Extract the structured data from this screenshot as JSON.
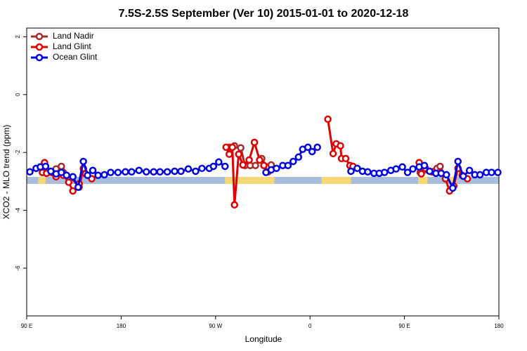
{
  "chart_data": {
    "type": "line",
    "title": "7.5S-2.5S September (Ver 10)   2015-01-01 to 2020-12-18",
    "x_label": "Longitude",
    "y_label": "XCO2 - MLO trend (ppm)",
    "xlim": [
      90,
      540
    ],
    "ylim": [
      -7.65,
      2.3
    ],
    "xticks": [
      {
        "value": 90,
        "label": "90 E"
      },
      180,
      {
        "value": 270,
        "label": "90 W"
      },
      {
        "value": 360,
        "label": "0"
      },
      {
        "value": 450,
        "label": "90 E"
      },
      {
        "value": 540,
        "label": "180"
      }
    ],
    "yticks": [
      2,
      0,
      -2,
      -4,
      -6
    ],
    "legend": "top-left",
    "land_ranges": [
      [
        101,
        108
      ],
      [
        279,
        326
      ],
      [
        371,
        399
      ],
      [
        463,
        472
      ],
      [
        493,
        500
      ]
    ],
    "series": [
      {
        "name": "Land Nadir",
        "color": "#a52a2a",
        "x": [
          105,
          118,
          123,
          140,
          144,
          null,
          283,
          288,
          294,
          298,
          303,
          308,
          314,
          319,
          323,
          null,
          465,
          476,
          481,
          484
        ],
        "values": [
          -2.69,
          -2.57,
          -2.48,
          -3.2,
          -2.57,
          null,
          -1.82,
          -1.77,
          -1.84,
          -2.45,
          -2.45,
          -2.45,
          -2.21,
          -2.5,
          -2.43,
          null,
          -2.69,
          -2.67,
          -2.55,
          -2.48
        ]
      },
      {
        "name": "Land Glint",
        "color": "#e00000",
        "x": [
          105,
          107,
          109,
          118,
          125,
          130,
          134,
          140,
          144,
          146,
          152,
          null,
          280,
          283,
          286,
          288,
          292,
          296,
          302,
          307,
          312,
          316,
          320,
          null,
          377,
          382,
          385,
          389,
          390,
          394,
          398,
          401,
          null,
          464,
          466,
          470,
          477,
          484,
          489,
          493,
          497,
          501,
          505,
          510
        ],
        "values": [
          -2.69,
          -2.35,
          -2.72,
          -2.84,
          -2.79,
          -3.03,
          -3.33,
          -3.08,
          -2.55,
          -2.74,
          -2.91,
          null,
          -1.82,
          -2.06,
          -1.82,
          -3.81,
          -2.06,
          -2.43,
          -2.26,
          -1.65,
          -2.26,
          -2.45,
          -2.67,
          null,
          -0.85,
          -2.04,
          -1.7,
          -1.77,
          -2.21,
          -2.21,
          -2.45,
          -2.48,
          null,
          -2.35,
          -2.74,
          -2.55,
          -2.67,
          -2.67,
          -2.91,
          -3.33,
          -3.16,
          -2.55,
          -2.79,
          -2.91
        ]
      },
      {
        "name": "Ocean Glint",
        "color": "#0000e6",
        "x": [
          93,
          99,
          103,
          108,
          113,
          118,
          123,
          128,
          134,
          139,
          144,
          148,
          153,
          158,
          164,
          170,
          177,
          184,
          190,
          197,
          204,
          211,
          217,
          224,
          231,
          237,
          244,
          251,
          257,
          264,
          268,
          273,
          279,
          null,
          318,
          323,
          328,
          334,
          339,
          344,
          349,
          353,
          358,
          362,
          367,
          null,
          399,
          405,
          410,
          415,
          421,
          426,
          431,
          437,
          442,
          448,
          453,
          458,
          464,
          469,
          474,
          480,
          485,
          490,
          496,
          501,
          506,
          512,
          517,
          522,
          528,
          533,
          539
        ],
        "values": [
          -2.67,
          -2.55,
          -2.5,
          -2.48,
          -2.65,
          -2.74,
          -2.69,
          -2.79,
          -2.84,
          -3.2,
          -2.31,
          -2.79,
          -2.62,
          -2.79,
          -2.77,
          -2.69,
          -2.69,
          -2.67,
          -2.67,
          -2.62,
          -2.67,
          -2.67,
          -2.67,
          -2.67,
          -2.65,
          -2.65,
          -2.57,
          -2.65,
          -2.55,
          -2.55,
          -2.48,
          -2.33,
          -2.48,
          null,
          -2.69,
          -2.6,
          -2.55,
          -2.45,
          -2.45,
          -2.31,
          -2.16,
          -1.89,
          -1.82,
          -1.97,
          -1.82,
          null,
          -2.65,
          -2.55,
          -2.65,
          -2.67,
          -2.72,
          -2.72,
          -2.69,
          -2.62,
          -2.57,
          -2.5,
          -2.69,
          -2.57,
          -2.5,
          -2.45,
          -2.65,
          -2.72,
          -2.72,
          -2.77,
          -3.23,
          -2.31,
          -2.82,
          -2.62,
          -2.77,
          -2.77,
          -2.69,
          -2.69,
          -2.69
        ]
      }
    ]
  }
}
